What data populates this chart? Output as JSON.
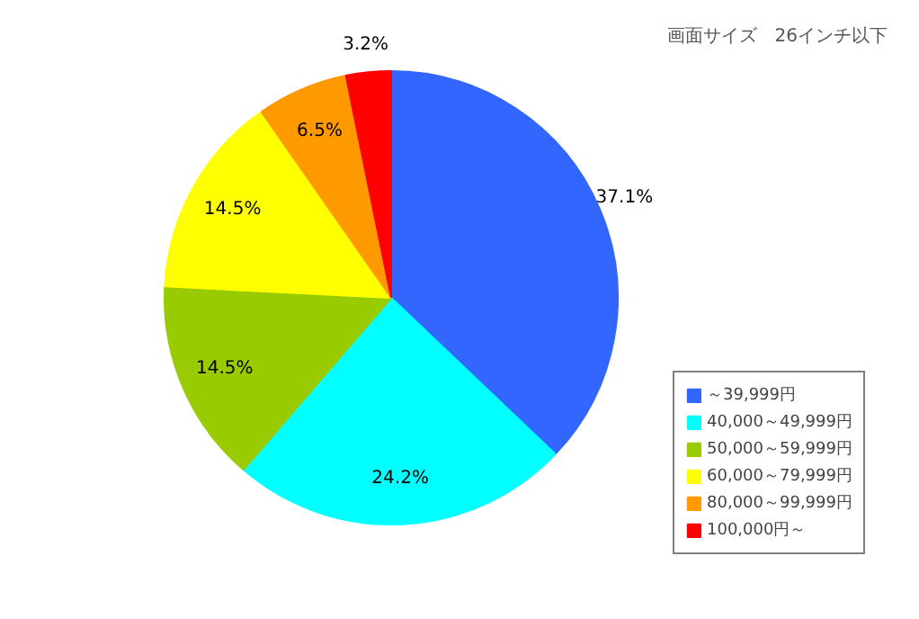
{
  "chart_data": {
    "type": "pie",
    "title": "画面サイズ　26インチ以下",
    "categories": [
      "～39,999円",
      "40,000～49,999円",
      "50,000～59,999円",
      "60,000～79,999円",
      "80,000～99,999円",
      "100,000円～"
    ],
    "values": [
      37.1,
      24.2,
      14.5,
      14.5,
      6.5,
      3.2
    ],
    "colors": [
      "#3366ff",
      "#00ffff",
      "#99cc00",
      "#ffff00",
      "#ff9900",
      "#ff0000"
    ],
    "value_labels": [
      "37.1%",
      "24.2%",
      "14.5%",
      "14.5%",
      "6.5%",
      "3.2%"
    ],
    "legend": "bottom right"
  }
}
